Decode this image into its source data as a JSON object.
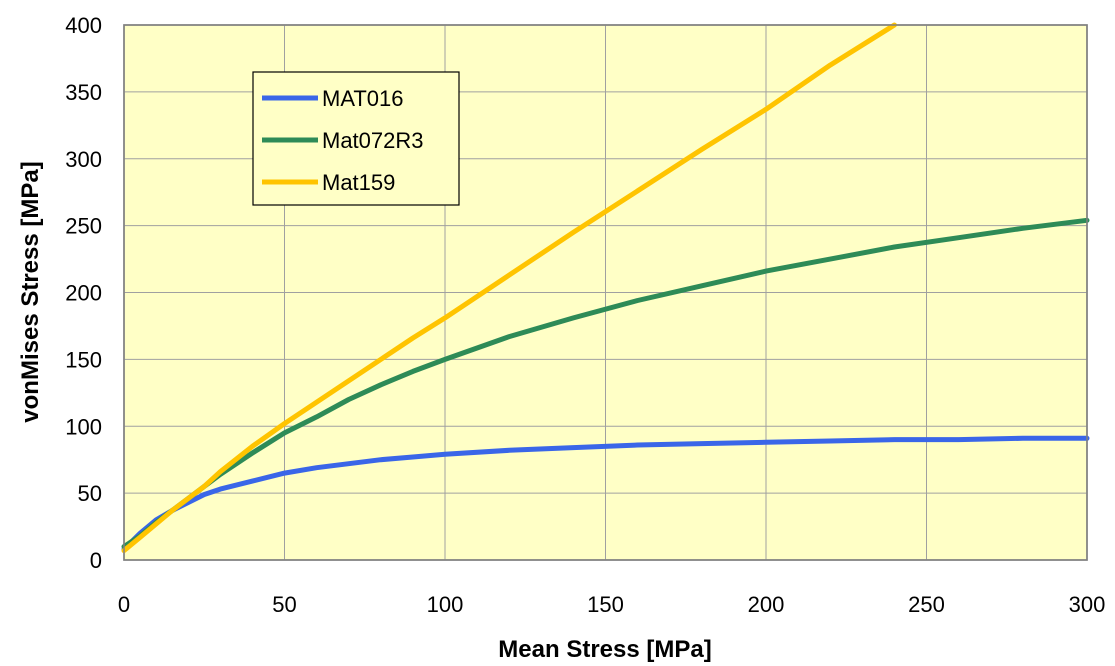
{
  "chart_data": {
    "type": "line",
    "xlabel": "Mean Stress [MPa]",
    "ylabel": "vonMises Stress [MPa]",
    "xlim": [
      0,
      300
    ],
    "ylim": [
      0,
      400
    ],
    "x_ticks": [
      0,
      50,
      100,
      150,
      200,
      250,
      300
    ],
    "y_ticks": [
      0,
      50,
      100,
      150,
      200,
      250,
      300,
      350,
      400
    ],
    "grid": true,
    "legend": "upper-left-inset",
    "plot_background": "#FFFFC6",
    "series": [
      {
        "name": "MAT016",
        "color": "#3A66E8",
        "x": [
          0,
          5,
          10,
          15,
          20,
          25,
          30,
          40,
          50,
          60,
          70,
          80,
          90,
          100,
          120,
          140,
          160,
          180,
          200,
          220,
          240,
          260,
          280,
          300
        ],
        "y": [
          8,
          20,
          30,
          37,
          43,
          49,
          53,
          59,
          65,
          69,
          72,
          75,
          77,
          79,
          82,
          84,
          86,
          87,
          88,
          89,
          90,
          90,
          91,
          91
        ]
      },
      {
        "name": "Mat072R3",
        "color": "#2E8B57",
        "x": [
          0,
          5,
          10,
          15,
          20,
          25,
          30,
          40,
          50,
          60,
          70,
          80,
          90,
          100,
          120,
          140,
          160,
          180,
          200,
          220,
          240,
          260,
          280,
          300
        ],
        "y": [
          10,
          18,
          28,
          37,
          46,
          55,
          64,
          80,
          95,
          107,
          120,
          131,
          141,
          150,
          167,
          181,
          194,
          205,
          216,
          225,
          234,
          241,
          248,
          254
        ]
      },
      {
        "name": "Mat159",
        "color": "#FFC400",
        "x": [
          0,
          5,
          10,
          15,
          20,
          25,
          30,
          40,
          50,
          60,
          70,
          80,
          90,
          100,
          120,
          140,
          160,
          180,
          200,
          220,
          240
        ],
        "y": [
          7,
          17,
          27,
          37,
          46,
          55,
          66,
          85,
          102,
          118,
          134,
          150,
          166,
          181,
          213,
          245,
          276,
          307,
          337,
          370,
          400
        ]
      }
    ]
  }
}
